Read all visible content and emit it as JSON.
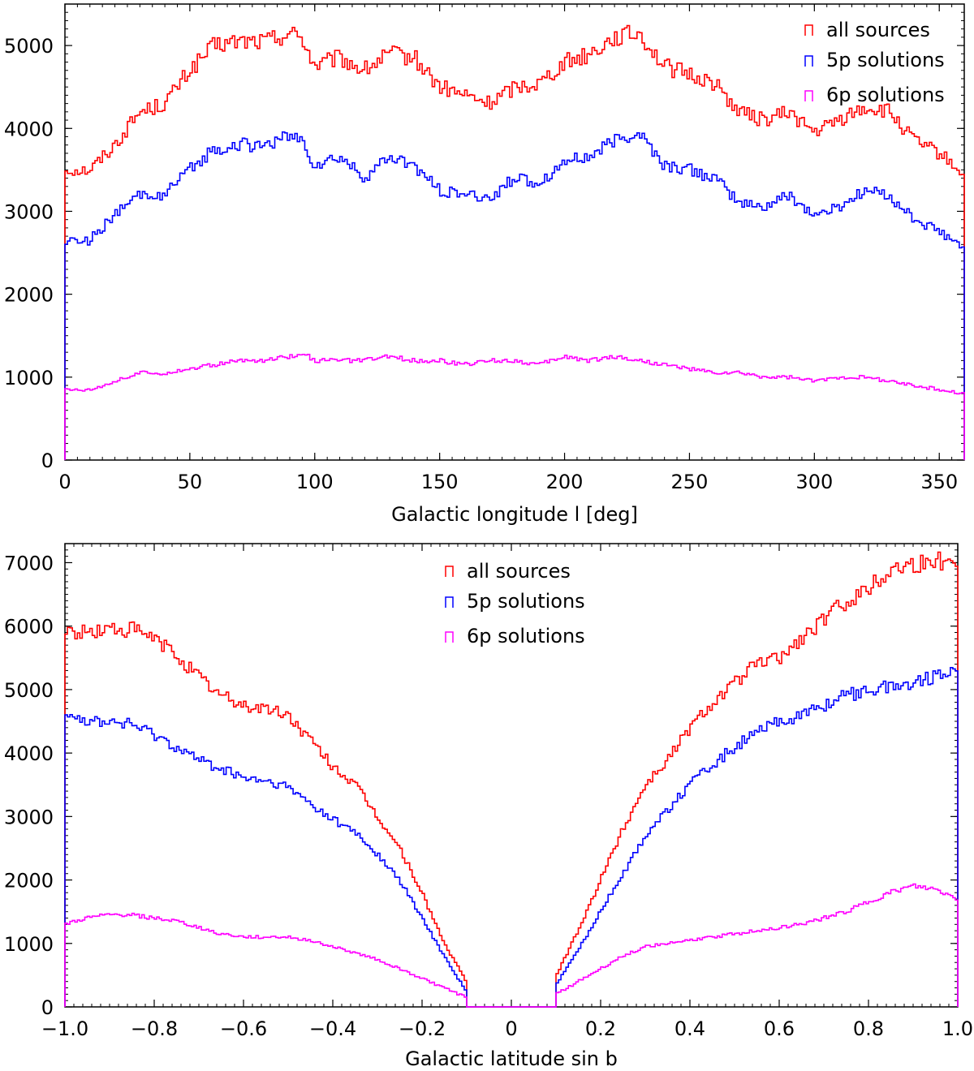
{
  "chart_data": [
    {
      "type": "line",
      "style": "step-histogram",
      "xlabel": "Galactic longitude l [deg]",
      "ylabel": "",
      "xlim": [
        0,
        360
      ],
      "ylim": [
        0,
        5500
      ],
      "xticks": [
        0,
        50,
        100,
        150,
        200,
        250,
        300,
        350
      ],
      "xtick_labels": [
        "0",
        "50",
        "100",
        "150",
        "200",
        "250",
        "300",
        "350"
      ],
      "yticks": [
        0,
        1000,
        2000,
        3000,
        4000,
        5000
      ],
      "ytick_labels": [
        "0",
        "1000",
        "2000",
        "3000",
        "4000",
        "5000"
      ],
      "legend_position": "top-right",
      "x": [
        0,
        10,
        20,
        30,
        40,
        50,
        60,
        70,
        80,
        90,
        95,
        100,
        110,
        120,
        130,
        140,
        150,
        160,
        170,
        180,
        190,
        200,
        210,
        220,
        230,
        240,
        250,
        260,
        270,
        280,
        290,
        300,
        310,
        320,
        330,
        340,
        350,
        360
      ],
      "series": [
        {
          "name": "all sources",
          "color": "#ff0000",
          "values": [
            3500,
            3500,
            3800,
            4200,
            4300,
            4700,
            5000,
            5050,
            5050,
            5150,
            5100,
            4750,
            4850,
            4700,
            4900,
            4850,
            4500,
            4400,
            4300,
            4500,
            4550,
            4800,
            4900,
            5100,
            5150,
            4750,
            4650,
            4550,
            4200,
            4100,
            4200,
            3950,
            4100,
            4250,
            4200,
            3850,
            3700,
            3450
          ]
        },
        {
          "name": "5p solutions",
          "color": "#0000ff",
          "values": [
            2650,
            2650,
            2950,
            3200,
            3200,
            3500,
            3750,
            3800,
            3800,
            3900,
            3850,
            3550,
            3650,
            3400,
            3650,
            3550,
            3250,
            3200,
            3150,
            3400,
            3350,
            3600,
            3650,
            3850,
            3950,
            3550,
            3500,
            3400,
            3100,
            3050,
            3200,
            2950,
            3050,
            3250,
            3200,
            2900,
            2750,
            2550
          ]
        },
        {
          "name": "6p solutions",
          "color": "#ff00ff",
          "values": [
            850,
            850,
            950,
            1050,
            1050,
            1100,
            1150,
            1200,
            1200,
            1250,
            1300,
            1200,
            1200,
            1200,
            1250,
            1200,
            1200,
            1150,
            1200,
            1200,
            1150,
            1250,
            1200,
            1250,
            1200,
            1150,
            1100,
            1050,
            1050,
            1000,
            1000,
            950,
            1000,
            1000,
            950,
            900,
            850,
            800
          ]
        }
      ]
    },
    {
      "type": "line",
      "style": "step-histogram",
      "xlabel": "Galactic latitude sin b",
      "ylabel": "",
      "xlim": [
        -1.0,
        1.0
      ],
      "ylim": [
        0,
        7300
      ],
      "xticks": [
        -1.0,
        -0.8,
        -0.6,
        -0.4,
        -0.2,
        0,
        0.2,
        0.4,
        0.6,
        0.8,
        1.0
      ],
      "xtick_labels": [
        "−1.0",
        "−0.8",
        "−0.6",
        "−0.4",
        "−0.2",
        "0",
        "0.2",
        "0.4",
        "0.6",
        "0.8",
        "1.0"
      ],
      "yticks": [
        0,
        1000,
        2000,
        3000,
        4000,
        5000,
        6000,
        7000
      ],
      "ytick_labels": [
        "0",
        "1000",
        "2000",
        "3000",
        "4000",
        "5000",
        "6000",
        "7000"
      ],
      "legend_position": "top-center",
      "x": [
        -1.0,
        -0.95,
        -0.9,
        -0.85,
        -0.8,
        -0.75,
        -0.7,
        -0.65,
        -0.6,
        -0.55,
        -0.5,
        -0.45,
        -0.4,
        -0.35,
        -0.3,
        -0.25,
        -0.2,
        -0.15,
        -0.101,
        -0.1,
        0,
        0.1,
        0.101,
        0.15,
        0.2,
        0.25,
        0.3,
        0.35,
        0.4,
        0.45,
        0.5,
        0.55,
        0.6,
        0.65,
        0.7,
        0.75,
        0.8,
        0.85,
        0.9,
        0.95,
        1.0
      ],
      "series": [
        {
          "name": "all sources",
          "color": "#ff0000",
          "values": [
            5900,
            5900,
            5950,
            5950,
            5800,
            5550,
            5200,
            4900,
            4750,
            4700,
            4600,
            4200,
            3800,
            3500,
            3000,
            2500,
            1800,
            1000,
            400,
            0,
            0,
            0,
            500,
            1200,
            2000,
            2800,
            3500,
            3900,
            4400,
            4800,
            5100,
            5400,
            5500,
            5800,
            6100,
            6400,
            6600,
            6900,
            7000,
            7000,
            7100
          ]
        },
        {
          "name": "5p solutions",
          "color": "#0000ff",
          "values": [
            4700,
            4500,
            4500,
            4450,
            4300,
            4100,
            3900,
            3750,
            3600,
            3550,
            3450,
            3200,
            2950,
            2750,
            2400,
            2000,
            1400,
            800,
            250,
            0,
            0,
            0,
            350,
            900,
            1500,
            2100,
            2700,
            3100,
            3500,
            3800,
            4100,
            4300,
            4500,
            4600,
            4750,
            4900,
            5000,
            5050,
            5100,
            5200,
            5400
          ]
        },
        {
          "name": "6p solutions",
          "color": "#ff00ff",
          "values": [
            1300,
            1400,
            1450,
            1450,
            1400,
            1350,
            1250,
            1150,
            1100,
            1100,
            1100,
            1050,
            950,
            850,
            750,
            600,
            450,
            300,
            150,
            0,
            0,
            0,
            200,
            400,
            600,
            800,
            950,
            1000,
            1050,
            1100,
            1150,
            1200,
            1250,
            1300,
            1400,
            1500,
            1650,
            1800,
            1900,
            1850,
            1700
          ]
        }
      ]
    }
  ]
}
